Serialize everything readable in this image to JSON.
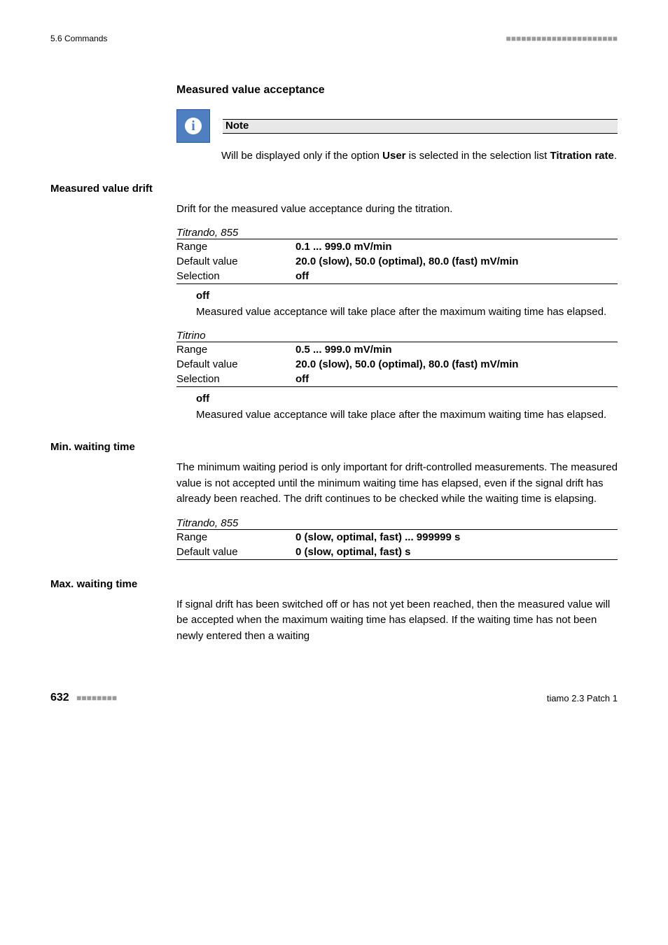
{
  "header": {
    "section": "5.6 Commands",
    "dots": "■■■■■■■■■■■■■■■■■■■■■■"
  },
  "section1": {
    "heading": "Measured value acceptance",
    "note_label": "Note",
    "note_body_pre": "Will be displayed only if the option ",
    "note_body_bold": "User",
    "note_body_mid": " is selected in the selection list ",
    "note_body_bold2": "Titration rate",
    "note_body_end": "."
  },
  "measured_value_drift": {
    "side_heading": "Measured value drift",
    "body": "Drift for the measured value acceptance during the titration.",
    "group1": {
      "caption": "Titrando, 855",
      "rows": [
        {
          "label": "Range",
          "value": "0.1 ... 999.0 mV/min"
        },
        {
          "label": "Default value",
          "value": "20.0 (slow), 50.0 (optimal), 80.0 (fast) mV/min"
        },
        {
          "label": "Selection",
          "value": "off"
        }
      ],
      "term": "off",
      "desc": "Measured value acceptance will take place after the maximum waiting time has elapsed."
    },
    "group2": {
      "caption": "Titrino",
      "rows": [
        {
          "label": "Range",
          "value": "0.5 ... 999.0 mV/min"
        },
        {
          "label": "Default value",
          "value": "20.0 (slow), 50.0 (optimal), 80.0 (fast) mV/min"
        },
        {
          "label": "Selection",
          "value": "off"
        }
      ],
      "term": "off",
      "desc": "Measured value acceptance will take place after the maximum waiting time has elapsed."
    }
  },
  "min_waiting": {
    "side_heading": "Min. waiting time",
    "body": "The minimum waiting period is only important for drift-controlled measurements. The measured value is not accepted until the minimum waiting time has elapsed, even if the signal drift has already been reached. The drift continues to be checked while the waiting time is elapsing.",
    "group": {
      "caption": "Titrando, 855",
      "rows": [
        {
          "label": "Range",
          "value": "0 (slow, optimal, fast) ... 999999 s"
        },
        {
          "label": "Default value",
          "value": "0 (slow, optimal, fast) s"
        }
      ]
    }
  },
  "max_waiting": {
    "side_heading": "Max. waiting time",
    "body": "If signal drift has been switched off or has not yet been reached, then the measured value will be accepted when the maximum waiting time has elapsed. If the waiting time has not been newly entered then a waiting"
  },
  "footer": {
    "page": "632",
    "dots": "■■■■■■■■",
    "product": "tiamo 2.3 Patch 1"
  }
}
